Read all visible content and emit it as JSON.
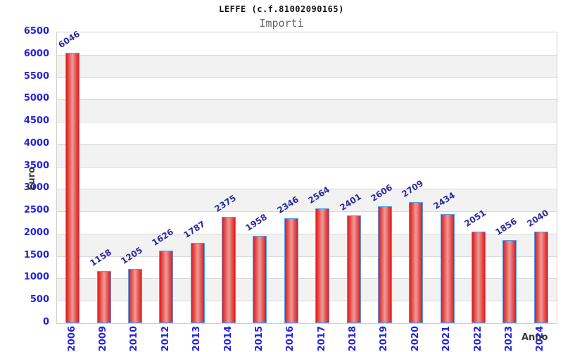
{
  "title": "LEFFE (c.f.81002090165)",
  "subtitle": "Importi",
  "chart_data": {
    "type": "bar",
    "title": "LEFFE (c.f.81002090165)",
    "subtitle": "Importi",
    "xlabel": "Anno",
    "ylabel": "Euro",
    "categories": [
      "2006",
      "2009",
      "2010",
      "2012",
      "2013",
      "2014",
      "2015",
      "2016",
      "2017",
      "2018",
      "2019",
      "2020",
      "2021",
      "2022",
      "2023",
      "2024"
    ],
    "values": [
      6046,
      1158,
      1205,
      1626,
      1787,
      2375,
      1958,
      2346,
      2564,
      2401,
      2606,
      2709,
      2434,
      2051,
      1856,
      2040
    ],
    "ylim": [
      0,
      6500
    ],
    "ytick_step": 500,
    "yticks": [
      0,
      500,
      1000,
      1500,
      2000,
      2500,
      3000,
      3500,
      4000,
      4500,
      5000,
      5500,
      6000,
      6500
    ],
    "grid": true,
    "legend": null,
    "colors": {
      "bar_edge": "#dd1c1c",
      "bar_center": "#eb9d97",
      "bar_border": "#4d9ef0",
      "axis_tick_label": "#2323dd",
      "value_label": "#2b2b9e",
      "band": "#f2f2f2",
      "gridline": "#d9d9d9",
      "axis_title": "#3a3a3a",
      "subtitle_color": "#666666"
    }
  }
}
